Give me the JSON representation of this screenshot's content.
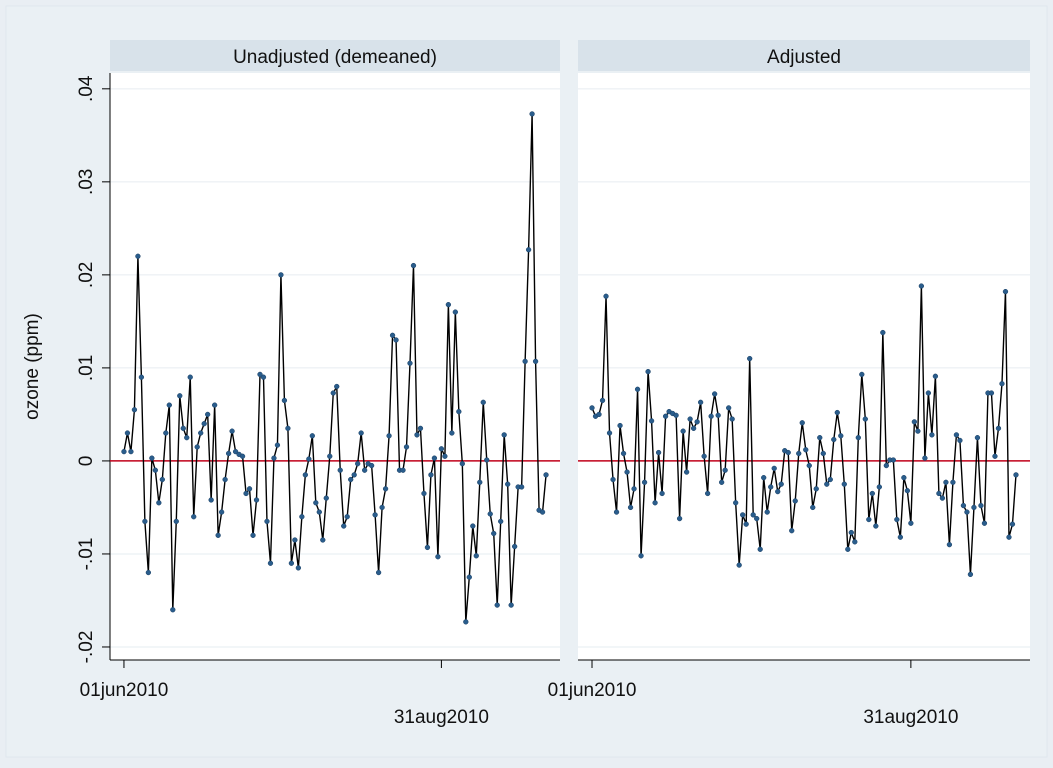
{
  "chart_data": [
    {
      "type": "line",
      "title": "Unadjusted (demeaned)",
      "ylabel": "ozone (ppm)",
      "color": "#000000",
      "marker_color": "#2a5d8c",
      "reference_line": {
        "value": 0,
        "color": "#c0001a"
      },
      "ylim": [
        -0.0214,
        0.0417
      ],
      "yticks": [
        {
          "value": -0.02,
          "label": "-.02"
        },
        {
          "value": -0.01,
          "label": "-.01"
        },
        0,
        {
          "value": 0.01,
          "label": ".01"
        },
        {
          "value": 0.02,
          "label": ".02"
        },
        {
          "value": 0.03,
          "label": ".03"
        },
        {
          "value": 0.04,
          "label": ".04"
        }
      ],
      "xlim": [
        "2010-05-28",
        "2010-10-04"
      ],
      "xticks": [
        {
          "value": "2010-06-01",
          "label": "01jun2010"
        },
        {
          "value": "2010-08-31",
          "label": "31aug2010"
        }
      ],
      "grid": true,
      "x": [
        "2010-06-01",
        "2010-06-02",
        "2010-06-03",
        "2010-06-04",
        "2010-06-05",
        "2010-06-06",
        "2010-06-07",
        "2010-06-08",
        "2010-06-09",
        "2010-06-10",
        "2010-06-11",
        "2010-06-12",
        "2010-06-13",
        "2010-06-14",
        "2010-06-15",
        "2010-06-16",
        "2010-06-17",
        "2010-06-18",
        "2010-06-19",
        "2010-06-20",
        "2010-06-21",
        "2010-06-22",
        "2010-06-23",
        "2010-06-24",
        "2010-06-25",
        "2010-06-26",
        "2010-06-27",
        "2010-06-28",
        "2010-06-29",
        "2010-06-30",
        "2010-07-01",
        "2010-07-02",
        "2010-07-03",
        "2010-07-04",
        "2010-07-05",
        "2010-07-06",
        "2010-07-07",
        "2010-07-08",
        "2010-07-09",
        "2010-07-10",
        "2010-07-11",
        "2010-07-12",
        "2010-07-13",
        "2010-07-14",
        "2010-07-15",
        "2010-07-16",
        "2010-07-17",
        "2010-07-18",
        "2010-07-19",
        "2010-07-20",
        "2010-07-21",
        "2010-07-22",
        "2010-07-23",
        "2010-07-24",
        "2010-07-25",
        "2010-07-26",
        "2010-07-27",
        "2010-07-28",
        "2010-07-29",
        "2010-07-30",
        "2010-07-31",
        "2010-08-01",
        "2010-08-02",
        "2010-08-03",
        "2010-08-04",
        "2010-08-05",
        "2010-08-06",
        "2010-08-07",
        "2010-08-08",
        "2010-08-09",
        "2010-08-10",
        "2010-08-11",
        "2010-08-12",
        "2010-08-13",
        "2010-08-14",
        "2010-08-15",
        "2010-08-16",
        "2010-08-17",
        "2010-08-18",
        "2010-08-19",
        "2010-08-20",
        "2010-08-21",
        "2010-08-22",
        "2010-08-23",
        "2010-08-24",
        "2010-08-25",
        "2010-08-26",
        "2010-08-27",
        "2010-08-28",
        "2010-08-29",
        "2010-08-30",
        "2010-08-31",
        "2010-09-01",
        "2010-09-02",
        "2010-09-03",
        "2010-09-04",
        "2010-09-05",
        "2010-09-06",
        "2010-09-07",
        "2010-09-08",
        "2010-09-09",
        "2010-09-10",
        "2010-09-11",
        "2010-09-12",
        "2010-09-13",
        "2010-09-14",
        "2010-09-15",
        "2010-09-16",
        "2010-09-17",
        "2010-09-18",
        "2010-09-19",
        "2010-09-20",
        "2010-09-21",
        "2010-09-22",
        "2010-09-23",
        "2010-09-24",
        "2010-09-25",
        "2010-09-26",
        "2010-09-27",
        "2010-09-28",
        "2010-09-29",
        "2010-09-30"
      ],
      "values": [
        0.001,
        0.003,
        0.001,
        0.0055,
        0.022,
        0.009,
        -0.0065,
        -0.012,
        0.0003,
        -0.001,
        -0.0045,
        -0.002,
        0.003,
        0.006,
        -0.016,
        -0.0065,
        0.007,
        0.0035,
        0.0025,
        0.009,
        -0.006,
        0.0015,
        0.003,
        0.004,
        0.005,
        -0.0042,
        0.006,
        -0.008,
        -0.0055,
        -0.002,
        0.0008,
        0.0032,
        0.001,
        0.0007,
        0.0005,
        -0.0035,
        -0.003,
        -0.008,
        -0.0042,
        0.0093,
        0.009,
        -0.0065,
        -0.011,
        0.0003,
        0.0017,
        0.02,
        0.0065,
        0.0035,
        -0.011,
        -0.0085,
        -0.0115,
        -0.006,
        -0.0015,
        0.0002,
        0.0027,
        -0.0045,
        -0.0055,
        -0.0085,
        -0.004,
        0.0005,
        0.0073,
        0.008,
        -0.001,
        -0.007,
        -0.006,
        -0.002,
        -0.0015,
        -0.0003,
        0.003,
        -0.001,
        -0.0003,
        -0.0005,
        -0.0058,
        -0.012,
        -0.005,
        -0.003,
        0.0027,
        0.0135,
        0.013,
        -0.001,
        -0.001,
        0.0015,
        0.0105,
        0.021,
        0.0028,
        0.0035,
        -0.0035,
        -0.0093,
        -0.0015,
        0.0003,
        -0.0103,
        0.0013,
        0.0005,
        0.0168,
        0.003,
        0.016,
        0.0053,
        -0.0003,
        -0.0173,
        -0.0125,
        -0.007,
        -0.0102,
        -0.0023,
        0.0063,
        0.0001,
        -0.0057,
        -0.0078,
        -0.0155,
        -0.0065,
        0.0028,
        -0.0025,
        -0.0155,
        -0.0092,
        -0.0028,
        -0.0028,
        0.0107,
        0.0227,
        0.0373,
        0.0107,
        -0.0053,
        -0.0055,
        -0.0015
      ]
    },
    {
      "type": "line",
      "title": "Adjusted",
      "color": "#000000",
      "marker_color": "#2a5d8c",
      "reference_line": {
        "value": 0,
        "color": "#c0001a"
      },
      "ylim": [
        -0.0214,
        0.0417
      ],
      "yticks": [
        {
          "value": -0.02,
          "label": "-.02"
        },
        {
          "value": -0.01,
          "label": "-.01"
        },
        0,
        {
          "value": 0.01,
          "label": ".01"
        },
        {
          "value": 0.02,
          "label": ".02"
        },
        {
          "value": 0.03,
          "label": ".03"
        },
        {
          "value": 0.04,
          "label": ".04"
        }
      ],
      "xlim": [
        "2010-05-28",
        "2010-10-04"
      ],
      "xticks": [
        {
          "value": "2010-06-01",
          "label": "01jun2010"
        },
        {
          "value": "2010-08-31",
          "label": "31aug2010"
        }
      ],
      "grid": true,
      "x": [
        "2010-06-01",
        "2010-06-02",
        "2010-06-03",
        "2010-06-04",
        "2010-06-05",
        "2010-06-06",
        "2010-06-07",
        "2010-06-08",
        "2010-06-09",
        "2010-06-10",
        "2010-06-11",
        "2010-06-12",
        "2010-06-13",
        "2010-06-14",
        "2010-06-15",
        "2010-06-16",
        "2010-06-17",
        "2010-06-18",
        "2010-06-19",
        "2010-06-20",
        "2010-06-21",
        "2010-06-22",
        "2010-06-23",
        "2010-06-24",
        "2010-06-25",
        "2010-06-26",
        "2010-06-27",
        "2010-06-28",
        "2010-06-29",
        "2010-06-30",
        "2010-07-01",
        "2010-07-02",
        "2010-07-03",
        "2010-07-04",
        "2010-07-05",
        "2010-07-06",
        "2010-07-07",
        "2010-07-08",
        "2010-07-09",
        "2010-07-10",
        "2010-07-11",
        "2010-07-12",
        "2010-07-13",
        "2010-07-14",
        "2010-07-15",
        "2010-07-16",
        "2010-07-17",
        "2010-07-18",
        "2010-07-19",
        "2010-07-20",
        "2010-07-21",
        "2010-07-22",
        "2010-07-23",
        "2010-07-24",
        "2010-07-25",
        "2010-07-26",
        "2010-07-27",
        "2010-07-28",
        "2010-07-29",
        "2010-07-30",
        "2010-07-31",
        "2010-08-01",
        "2010-08-02",
        "2010-08-03",
        "2010-08-04",
        "2010-08-05",
        "2010-08-06",
        "2010-08-07",
        "2010-08-08",
        "2010-08-09",
        "2010-08-10",
        "2010-08-11",
        "2010-08-12",
        "2010-08-13",
        "2010-08-14",
        "2010-08-15",
        "2010-08-16",
        "2010-08-17",
        "2010-08-18",
        "2010-08-19",
        "2010-08-20",
        "2010-08-21",
        "2010-08-22",
        "2010-08-23",
        "2010-08-24",
        "2010-08-25",
        "2010-08-26",
        "2010-08-27",
        "2010-08-28",
        "2010-08-29",
        "2010-08-30",
        "2010-08-31",
        "2010-09-01",
        "2010-09-02",
        "2010-09-03",
        "2010-09-04",
        "2010-09-05",
        "2010-09-06",
        "2010-09-07",
        "2010-09-08",
        "2010-09-09",
        "2010-09-10",
        "2010-09-11",
        "2010-09-12",
        "2010-09-13",
        "2010-09-14",
        "2010-09-15",
        "2010-09-16",
        "2010-09-17",
        "2010-09-18",
        "2010-09-19",
        "2010-09-20",
        "2010-09-21",
        "2010-09-22",
        "2010-09-23",
        "2010-09-24",
        "2010-09-25",
        "2010-09-26",
        "2010-09-27",
        "2010-09-28",
        "2010-09-29",
        "2010-09-30"
      ],
      "values": [
        0.0057,
        0.0048,
        0.005,
        0.0065,
        0.0177,
        0.003,
        -0.002,
        -0.0055,
        0.0038,
        0.0008,
        -0.0012,
        -0.005,
        -0.003,
        0.0077,
        -0.0102,
        -0.0023,
        0.0096,
        0.0043,
        -0.0045,
        0.0009,
        -0.0035,
        0.0048,
        0.0053,
        0.0051,
        0.0049,
        -0.0062,
        0.0032,
        -0.0012,
        0.0045,
        0.0035,
        0.0042,
        0.0063,
        0.0005,
        -0.0035,
        0.0048,
        0.0072,
        0.0049,
        -0.0023,
        -0.001,
        0.0057,
        0.0045,
        -0.0045,
        -0.0112,
        -0.0058,
        -0.0068,
        0.011,
        -0.0058,
        -0.0062,
        -0.0095,
        -0.0018,
        -0.0055,
        -0.0028,
        -0.0008,
        -0.0033,
        -0.0025,
        0.0011,
        0.0009,
        -0.0075,
        -0.0043,
        0.0008,
        0.0041,
        0.0012,
        -0.0005,
        -0.005,
        -0.003,
        0.0025,
        0.0008,
        -0.0025,
        -0.002,
        0.0023,
        0.0052,
        0.0027,
        -0.0025,
        -0.0095,
        -0.0077,
        -0.0087,
        0.0025,
        0.0093,
        0.0045,
        -0.0063,
        -0.0035,
        -0.007,
        -0.0028,
        0.0138,
        -0.0005,
        0.0001,
        0.0001,
        -0.0063,
        -0.0082,
        -0.0018,
        -0.0032,
        -0.0067,
        0.0042,
        0.0032,
        0.0188,
        0.0003,
        0.0073,
        0.0028,
        0.0091,
        -0.0035,
        -0.004,
        -0.0023,
        -0.009,
        -0.0023,
        0.0028,
        0.0022,
        -0.0048,
        -0.0055,
        -0.0122,
        -0.005,
        0.0025,
        -0.0048,
        -0.0067,
        0.0073,
        0.0073,
        0.0005,
        0.0035,
        0.0083,
        0.0182,
        -0.0082,
        -0.0068,
        -0.0015
      ]
    }
  ]
}
